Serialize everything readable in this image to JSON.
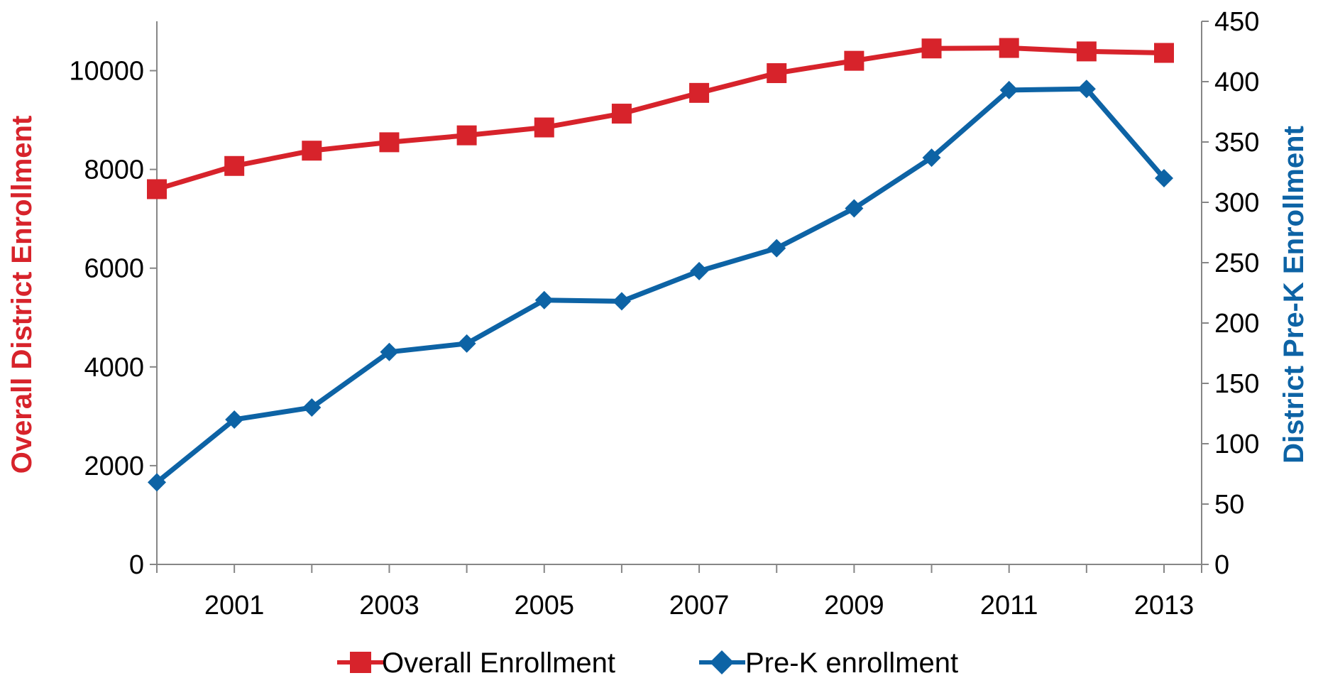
{
  "chart_data": {
    "type": "line",
    "title": "",
    "x": [
      2000,
      2001,
      2002,
      2003,
      2004,
      2005,
      2006,
      2007,
      2008,
      2009,
      2010,
      2011,
      2012,
      2013
    ],
    "x_tick_labels": [
      "2001",
      "2003",
      "2005",
      "2007",
      "2009",
      "2011",
      "2013"
    ],
    "ylabel_left": "Overall District Enrollment",
    "ylabel_right": "District Pre-K Enrollment",
    "ylim_left": [
      0,
      11000
    ],
    "ylim_right": [
      0,
      450
    ],
    "y_ticks_left": [
      0,
      2000,
      4000,
      6000,
      8000,
      10000
    ],
    "y_ticks_right": [
      0,
      50,
      100,
      150,
      200,
      250,
      300,
      350,
      400,
      450
    ],
    "grid": false,
    "legend_position": "bottom",
    "series": [
      {
        "name": "Overall Enrollment",
        "axis": "left",
        "color": "#d7232b",
        "marker": "square",
        "values": [
          7600,
          8070,
          8380,
          8550,
          8690,
          8850,
          9130,
          9550,
          9950,
          10200,
          10450,
          10460,
          10390,
          10360
        ]
      },
      {
        "name": "Pre-K enrollment",
        "axis": "right",
        "color": "#0d63a5",
        "marker": "diamond",
        "values": [
          68,
          120,
          130,
          176,
          183,
          219,
          218,
          243,
          262,
          295,
          337,
          393,
          394,
          320
        ]
      }
    ]
  }
}
